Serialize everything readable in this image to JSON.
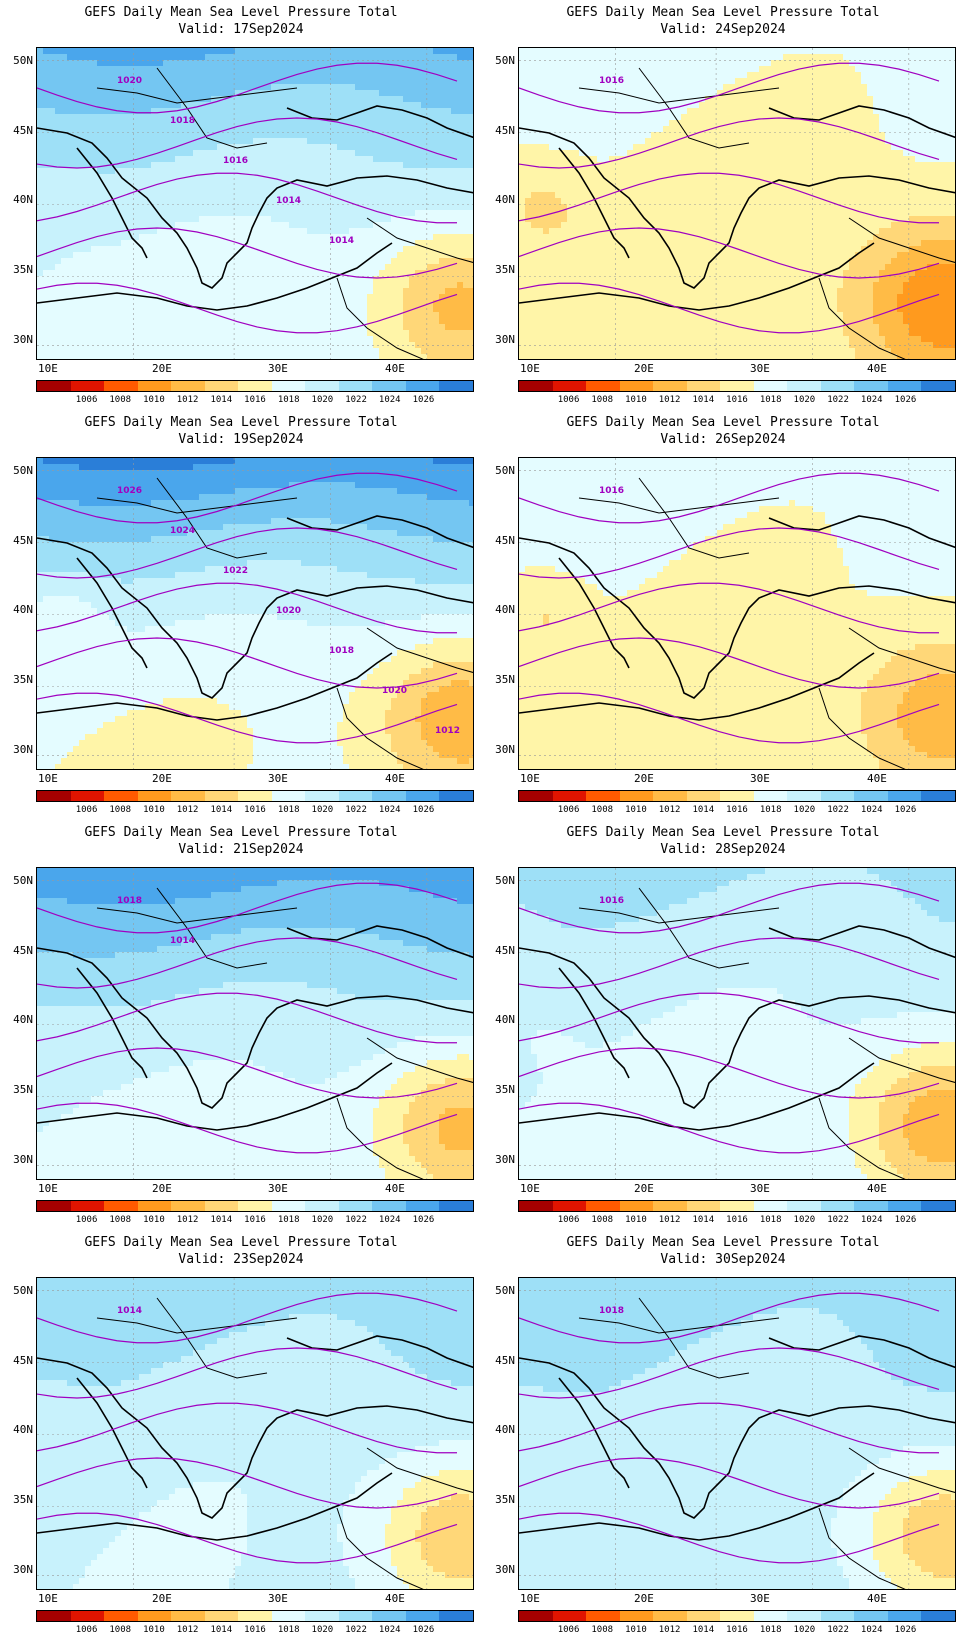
{
  "title_line1": "GEFS Daily Mean Sea Level Pressure Total",
  "lat_labels": [
    "50N",
    "45N",
    "40N",
    "35N",
    "30N"
  ],
  "lon_labels": [
    "10E",
    "20E",
    "30E",
    "40E"
  ],
  "colorbar": {
    "colors": [
      "#a50000",
      "#e01400",
      "#ff5a00",
      "#ff9a1e",
      "#ffbb46",
      "#ffd778",
      "#fff5a8",
      "#e4fcff",
      "#c8f2fc",
      "#9ee0f7",
      "#74c6f2",
      "#4aa6ec",
      "#2a7ed8"
    ],
    "labels": [
      "1006",
      "1008",
      "1010",
      "1012",
      "1014",
      "1016",
      "1018",
      "1020",
      "1022",
      "1024",
      "1026"
    ]
  },
  "panels": [
    {
      "valid": "Valid: 17Sep2024",
      "contour_labels": [
        "1020",
        "1018",
        "1016",
        "1014",
        "1014"
      ],
      "base": 7,
      "north": 3.5,
      "east": -3.0
    },
    {
      "valid": "Valid: 24Sep2024",
      "contour_labels": [
        "1016"
      ],
      "base": 6.0,
      "north": 0.8,
      "east": -3.5
    },
    {
      "valid": "Valid: 19Sep2024",
      "contour_labels": [
        "1026",
        "1024",
        "1022",
        "1020",
        "1018",
        "1020",
        "1012"
      ],
      "base": 6.5,
      "north": 5.0,
      "east": -3.0
    },
    {
      "valid": "Valid: 26Sep2024",
      "contour_labels": [
        "1016"
      ],
      "base": 6.2,
      "north": 0.8,
      "east": -2.5
    },
    {
      "valid": "Valid: 21Sep2024",
      "contour_labels": [
        "1018",
        "1014"
      ],
      "base": 7.2,
      "north": 3.8,
      "east": -3.2
    },
    {
      "valid": "Valid: 28Sep2024",
      "contour_labels": [
        "1016"
      ],
      "base": 7.2,
      "north": 1.5,
      "east": -3.6
    },
    {
      "valid": "Valid: 23Sep2024",
      "contour_labels": [
        "1014"
      ],
      "base": 7.6,
      "north": 1.5,
      "east": -3.0
    },
    {
      "valid": "Valid: 30Sep2024",
      "contour_labels": [
        "1018"
      ],
      "base": 7.8,
      "north": 1.2,
      "east": -3.2
    }
  ]
}
